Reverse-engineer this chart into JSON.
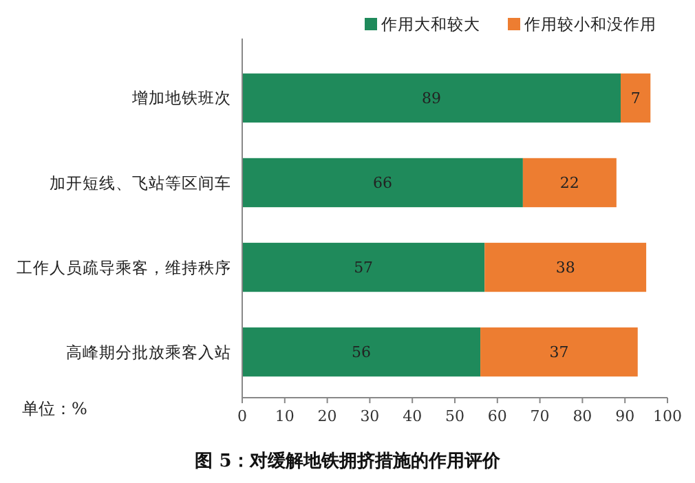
{
  "chart_data": {
    "type": "bar",
    "orientation": "horizontal",
    "stacked": true,
    "title": "图 5：对缓解地铁拥挤措施的作用评价",
    "categories": [
      "增加地铁班次",
      "加开短线、飞站等区间车",
      "工作人员疏导乘客，维持秩序",
      "高峰期分批放乘客入站"
    ],
    "series": [
      {
        "name": "作用大和较大",
        "color": "#1f8a5b",
        "values": [
          89,
          66,
          57,
          56
        ]
      },
      {
        "name": "作用较小和没作用",
        "color": "#ed7d31",
        "values": [
          7,
          22,
          38,
          37
        ]
      }
    ],
    "xlim": [
      0,
      100
    ],
    "xticks": [
      0,
      10,
      20,
      30,
      40,
      50,
      60,
      70,
      80,
      90,
      100
    ],
    "data_labels": true,
    "legend": "top right",
    "annotations": [
      "单位：%"
    ]
  }
}
